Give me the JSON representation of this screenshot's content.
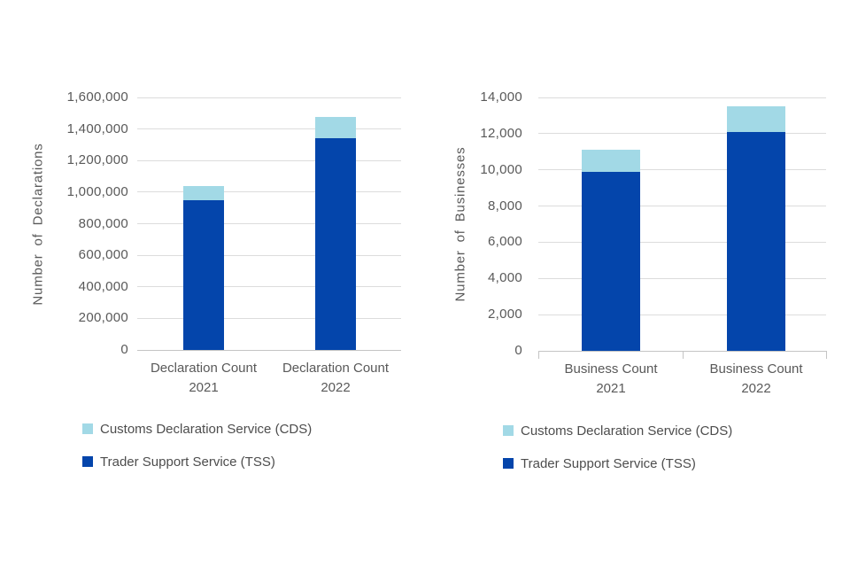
{
  "chart_data": [
    {
      "type": "bar",
      "stacked": true,
      "title": "",
      "xlabel": "",
      "ylabel": "Number of Declarations",
      "categories": [
        [
          "Declaration Count",
          "2021"
        ],
        [
          "Declaration Count",
          "2022"
        ]
      ],
      "series": [
        {
          "name": "Trader Support Service (TSS)",
          "color": "#0445ab",
          "values": [
            950000,
            1340000
          ]
        },
        {
          "name": "Customs Declaration Service (CDS)",
          "color": "#a2d9e6",
          "values": [
            90000,
            135000
          ]
        }
      ],
      "totals": [
        1040000,
        1475000
      ],
      "ylim": [
        0,
        1600000
      ],
      "ytick_step": 200000,
      "ytick_labels": [
        "0",
        "200,000",
        "400,000",
        "600,000",
        "800,000",
        "1,000,000",
        "1,200,000",
        "1,400,000",
        "1,600,000"
      ],
      "grid": true,
      "legend_position": "bottom",
      "legend": [
        {
          "label": "Customs Declaration Service (CDS)",
          "color": "#a2d9e6"
        },
        {
          "label": "Trader Support Service (TSS)",
          "color": "#0445ab"
        }
      ]
    },
    {
      "type": "bar",
      "stacked": true,
      "title": "",
      "xlabel": "",
      "ylabel": "Number of Businesses",
      "categories": [
        [
          "Business Count",
          "2021"
        ],
        [
          "Business Count",
          "2022"
        ]
      ],
      "series": [
        {
          "name": "Trader Support Service (TSS)",
          "color": "#0445ab",
          "values": [
            9900,
            12100
          ]
        },
        {
          "name": "Customs Declaration Service (CDS)",
          "color": "#a2d9e6",
          "values": [
            1200,
            1400
          ]
        }
      ],
      "totals": [
        11100,
        13500
      ],
      "ylim": [
        0,
        14000
      ],
      "ytick_step": 2000,
      "ytick_labels": [
        "0",
        "2,000",
        "4,000",
        "6,000",
        "8,000",
        "10,000",
        "12,000",
        "14,000"
      ],
      "grid": true,
      "legend_position": "bottom",
      "legend": [
        {
          "label": "Customs Declaration Service (CDS)",
          "color": "#a2d9e6"
        },
        {
          "label": "Trader Support Service (TSS)",
          "color": "#0445ab"
        }
      ]
    }
  ],
  "colors": {
    "tss_dark_blue": "#0445ab",
    "cds_light_blue": "#a2d9e6",
    "gridline": "#dcdcdc",
    "axis_line": "#c4c4c4",
    "axis_text": "#595959",
    "legend_text": "#4d4d4d",
    "background": "#ffffff"
  }
}
